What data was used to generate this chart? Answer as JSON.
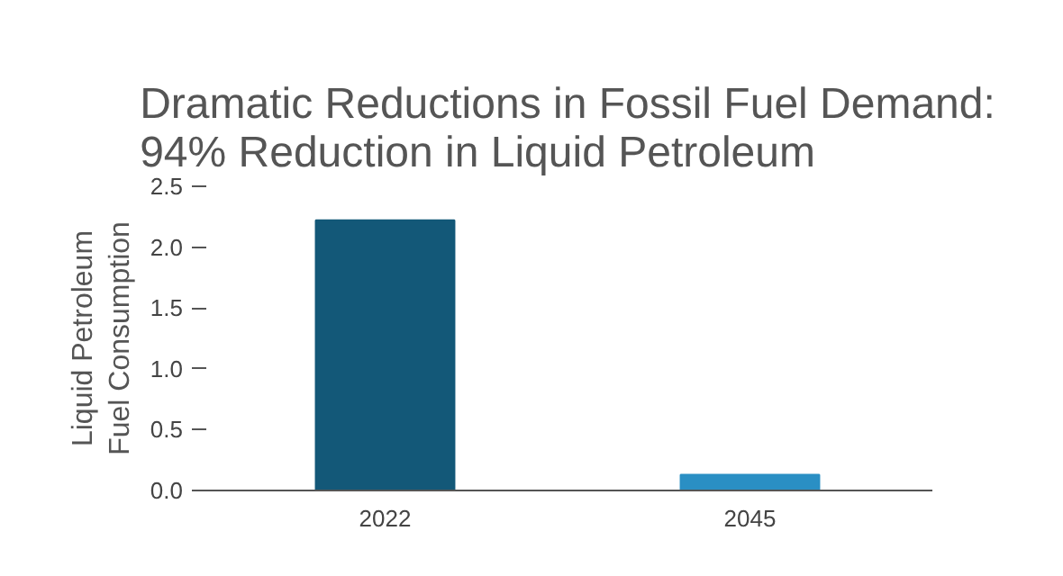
{
  "chart_data": {
    "type": "bar",
    "title": "Dramatic Reductions in Fossil Fuel Demand:\n94% Reduction in Liquid Petroleum",
    "ylabel": "Liquid Petroleum\nFuel Consumption",
    "categories": [
      "2022",
      "2045"
    ],
    "values": [
      2.22,
      0.13
    ],
    "colors": [
      "#135878",
      "#2a8fc4"
    ],
    "ylim": [
      0,
      2.5
    ],
    "yticks": [
      {
        "value": 0,
        "label": "0.0"
      },
      {
        "value": 0.5,
        "label": "0.5"
      },
      {
        "value": 1,
        "label": "1.0"
      },
      {
        "value": 1.5,
        "label": "1.5"
      },
      {
        "value": 2,
        "label": "2.0"
      },
      {
        "value": 2.5,
        "label": "2.5"
      }
    ],
    "grid": false
  }
}
